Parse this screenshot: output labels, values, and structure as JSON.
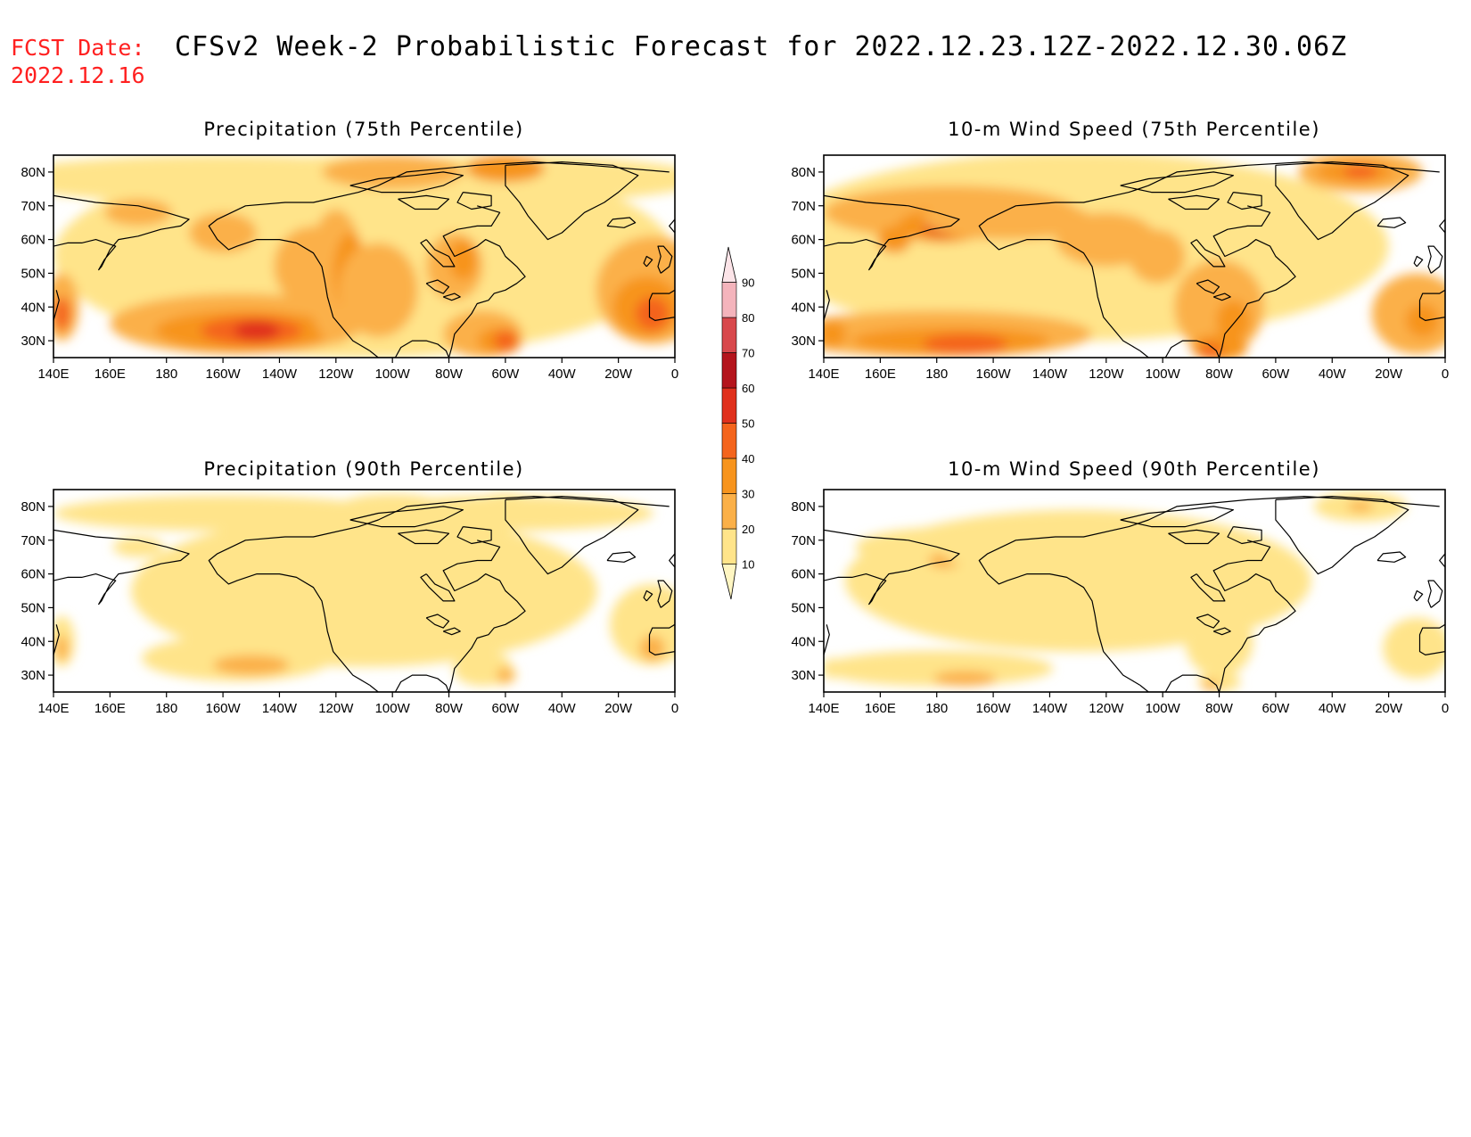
{
  "header": {
    "fcst_label": "FCST Date:",
    "fcst_date": "2022.12.16",
    "title": "CFSv2 Week-2 Probabilistic Forecast for 2022.12.23.12Z-2022.12.30.06Z"
  },
  "axes": {
    "lon_ticks": [
      "140E",
      "160E",
      "180",
      "160W",
      "140W",
      "120W",
      "100W",
      "80W",
      "60W",
      "40W",
      "20W",
      "0"
    ],
    "lat_ticks": [
      "80N",
      "70N",
      "60N",
      "50N",
      "40N",
      "30N"
    ]
  },
  "colorbar": {
    "levels": [
      "10",
      "20",
      "30",
      "40",
      "50",
      "60",
      "70",
      "80",
      "90"
    ],
    "colors": [
      "#fff6c2",
      "#ffe48a",
      "#fbb048",
      "#f7941d",
      "#f4641c",
      "#e0301c",
      "#b4141c",
      "#d8484c",
      "#f4b4bc",
      "#fce4e8"
    ]
  },
  "panels": [
    {
      "id": "precip75",
      "title": "Precipitation (75th Percentile)",
      "intensity": 1.0,
      "variable": "precip"
    },
    {
      "id": "wind75",
      "title": "10-m Wind Speed (75th Percentile)",
      "intensity": 1.0,
      "variable": "wind"
    },
    {
      "id": "precip90",
      "title": "Precipitation (90th Percentile)",
      "intensity": 0.35,
      "variable": "precip"
    },
    {
      "id": "wind90",
      "title": "10-m Wind Speed (90th Percentile)",
      "intensity": 0.3,
      "variable": "wind"
    }
  ]
}
